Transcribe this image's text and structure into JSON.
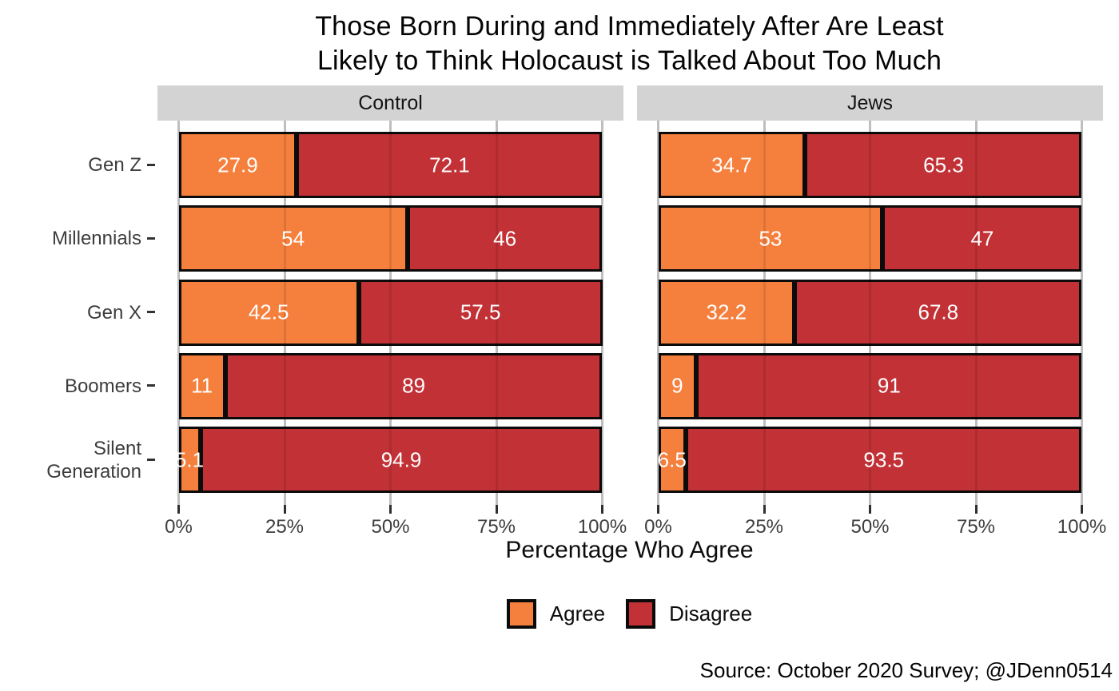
{
  "title": {
    "line1": "Those Born During and Immediately After Are Least",
    "line2": "Likely to Think Holocaust is Talked About Too Much"
  },
  "chart_data": {
    "type": "bar",
    "orientation": "horizontal",
    "stacked": true,
    "categories": [
      "Gen Z",
      "Millennials",
      "Gen X",
      "Boomers",
      "Silent Generation"
    ],
    "category_display": [
      "Gen Z",
      "Millennials",
      "Gen X",
      "Boomers",
      "Silent\nGeneration"
    ],
    "facets": [
      {
        "label": "Control",
        "series": [
          {
            "name": "Agree",
            "values": [
              27.9,
              54,
              42.5,
              11,
              5.1
            ]
          },
          {
            "name": "Disagree",
            "values": [
              72.1,
              46,
              57.5,
              89,
              94.9
            ]
          }
        ]
      },
      {
        "label": "Jews",
        "series": [
          {
            "name": "Agree",
            "values": [
              34.7,
              53,
              32.2,
              9,
              6.5
            ]
          },
          {
            "name": "Disagree",
            "values": [
              65.3,
              47,
              67.8,
              91,
              93.5
            ]
          }
        ]
      }
    ],
    "x_tick_values": [
      0,
      25,
      50,
      75,
      100
    ],
    "x_tick_labels": [
      "0%",
      "25%",
      "50%",
      "75%",
      "100%"
    ],
    "xlabel": "Percentage Who Agree",
    "xlim": [
      0,
      100
    ],
    "grid": "vertical-major",
    "legend_position": "bottom",
    "colors": {
      "agree": "#F5803D",
      "disagree": "#C23136",
      "strip_background": "#d3d3d3",
      "gridline": "#d4d4d4",
      "bar_border": "#0b0b0b",
      "value_label": "#ffffff"
    }
  },
  "legend": {
    "items": [
      {
        "label": "Agree",
        "color": "#F5803D"
      },
      {
        "label": "Disagree",
        "color": "#C23136"
      }
    ]
  },
  "source": "Source: October 2020 Survey; @JDenn0514"
}
